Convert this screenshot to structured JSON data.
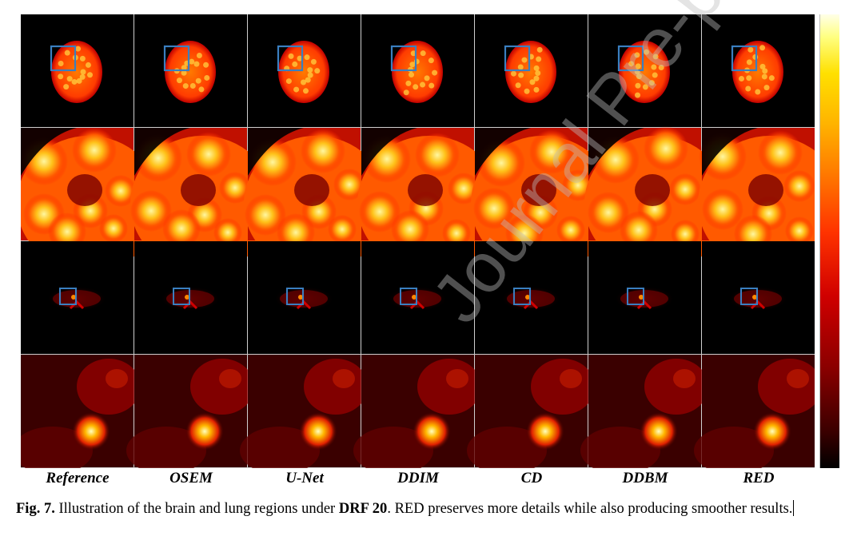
{
  "figure": {
    "columns": [
      "Reference",
      "OSEM",
      "U-Net",
      "DDIM",
      "CD",
      "DDBM",
      "RED"
    ],
    "caption": {
      "label": "Fig. 7.",
      "text_before": " Illustration of the brain and lung regions under ",
      "bold_term": "DRF 20",
      "text_after": ". RED preserves more details while also producing smoother results."
    },
    "colormap": "hot",
    "roi_box_color": "#3a7fc0"
  },
  "watermark": "Journal Pre-proof"
}
